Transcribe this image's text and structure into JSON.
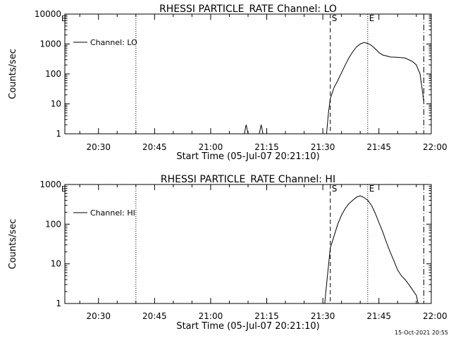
{
  "timestamp": "15-Oct-2021 20:55",
  "colors": {
    "background": "#ffffff",
    "ink": "#000000"
  },
  "chart_data": [
    {
      "type": "line",
      "title": "RHESSI PARTICLE_RATE Channel: LO",
      "xlabel": "Start Time (05-Jul-07 20:21:10)",
      "ylabel": "Counts/sec",
      "yscale": "log",
      "xlim": [
        "20:21",
        "21:59"
      ],
      "ylim": [
        1,
        10000
      ],
      "xticks": [
        "20:30",
        "20:45",
        "21:00",
        "21:15",
        "21:30",
        "21:45",
        "22:00"
      ],
      "yticks": [
        "1",
        "10",
        "100",
        "1000",
        "10000"
      ],
      "legend": {
        "placement": "top-left",
        "label": "Channel: LO"
      },
      "markers": [
        {
          "type": "dotted",
          "time": "20:40"
        },
        {
          "type": "dashed",
          "time": "21:32",
          "label": "S"
        },
        {
          "type": "dotted",
          "time": "21:42",
          "label": "E"
        },
        {
          "type": "dashdot",
          "time": "21:57"
        }
      ],
      "corner_label": "E",
      "series": [
        {
          "points": [
            [
              "21:09",
              1
            ],
            [
              "21:09.5",
              2
            ],
            [
              "21:10",
              1
            ],
            [
              "21:13",
              1
            ],
            [
              "21:13.5",
              2
            ],
            [
              "21:14",
              1
            ],
            [
              "21:31",
              1
            ],
            [
              "21:31.5",
              5
            ],
            [
              "21:32",
              15
            ],
            [
              "21:33",
              35
            ],
            [
              "21:34",
              60
            ],
            [
              "21:35",
              110
            ],
            [
              "21:36",
              200
            ],
            [
              "21:37",
              350
            ],
            [
              "21:38",
              550
            ],
            [
              "21:39",
              800
            ],
            [
              "21:40",
              1000
            ],
            [
              "21:41",
              1120
            ],
            [
              "21:42",
              1050
            ],
            [
              "21:43",
              900
            ],
            [
              "21:44",
              700
            ],
            [
              "21:45",
              520
            ],
            [
              "21:46",
              430
            ],
            [
              "21:47",
              400
            ],
            [
              "21:48",
              370
            ],
            [
              "21:50",
              360
            ],
            [
              "21:52",
              340
            ],
            [
              "21:54",
              260
            ],
            [
              "21:55",
              200
            ],
            [
              "21:56",
              100
            ],
            [
              "21:57",
              12
            ]
          ]
        }
      ]
    },
    {
      "type": "line",
      "title": "RHESSI PARTICLE_RATE Channel: HI",
      "xlabel": "Start Time (05-Jul-07 20:21:10)",
      "ylabel": "Counts/sec",
      "yscale": "log",
      "xlim": [
        "20:21",
        "21:59"
      ],
      "ylim": [
        1,
        1000
      ],
      "xticks": [
        "20:30",
        "20:45",
        "21:00",
        "21:15",
        "21:30",
        "21:45",
        "22:00"
      ],
      "yticks": [
        "1",
        "10",
        "100",
        "1000"
      ],
      "legend": {
        "placement": "top-left",
        "label": "Channel: HI"
      },
      "markers": [
        {
          "type": "dotted",
          "time": "20:40"
        },
        {
          "type": "dashed",
          "time": "21:32",
          "label": "S"
        },
        {
          "type": "dotted",
          "time": "21:42",
          "label": "E"
        },
        {
          "type": "dashdot",
          "time": "21:57"
        }
      ],
      "corner_label": "E",
      "series": [
        {
          "points": [
            [
              "21:30.5",
              1
            ],
            [
              "21:31",
              3
            ],
            [
              "21:32",
              25
            ],
            [
              "21:33",
              50
            ],
            [
              "21:34",
              100
            ],
            [
              "21:35",
              170
            ],
            [
              "21:36",
              250
            ],
            [
              "21:37",
              330
            ],
            [
              "21:38",
              400
            ],
            [
              "21:39",
              480
            ],
            [
              "21:40",
              520
            ],
            [
              "21:41",
              470
            ],
            [
              "21:42",
              400
            ],
            [
              "21:43",
              300
            ],
            [
              "21:44",
              190
            ],
            [
              "21:45",
              110
            ],
            [
              "21:46",
              65
            ],
            [
              "21:47",
              35
            ],
            [
              "21:48",
              20
            ],
            [
              "21:49",
              12
            ],
            [
              "21:50",
              7
            ],
            [
              "21:51",
              5
            ],
            [
              "21:52",
              4
            ],
            [
              "21:53",
              3
            ],
            [
              "21:54",
              2.2
            ],
            [
              "21:55",
              1.6
            ],
            [
              "21:55.5",
              1
            ]
          ]
        }
      ]
    }
  ]
}
